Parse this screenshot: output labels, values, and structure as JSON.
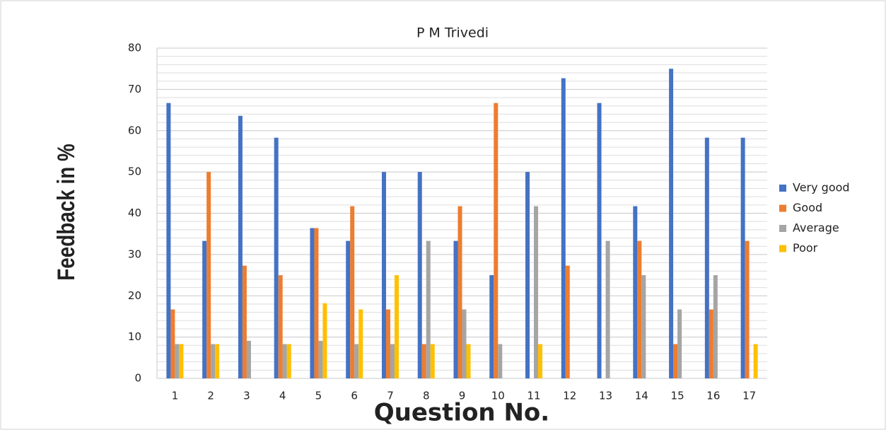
{
  "chart_data": {
    "type": "bar",
    "title": "P M Trivedi",
    "x_label": "Question No.",
    "y_label": "Feedback in %",
    "categories": [
      "1",
      "2",
      "3",
      "4",
      "5",
      "6",
      "7",
      "8",
      "9",
      "10",
      "11",
      "12",
      "13",
      "14",
      "15",
      "16",
      "17"
    ],
    "series": [
      {
        "name": "Very good",
        "color": "#4472c4",
        "values": [
          66.7,
          33.3,
          63.6,
          58.3,
          36.4,
          33.3,
          50,
          50,
          33.3,
          25,
          50,
          72.7,
          66.7,
          41.7,
          75,
          58.3,
          58.3
        ]
      },
      {
        "name": "Good",
        "color": "#ed7d31",
        "values": [
          16.7,
          50,
          27.3,
          25,
          36.4,
          41.7,
          16.7,
          8.3,
          41.7,
          66.7,
          0,
          27.3,
          0,
          33.3,
          8.3,
          16.7,
          33.3
        ]
      },
      {
        "name": "Average",
        "color": "#a5a5a5",
        "values": [
          8.3,
          8.3,
          9.1,
          8.3,
          9.1,
          8.3,
          8.3,
          33.3,
          16.7,
          8.3,
          41.7,
          0,
          33.3,
          25,
          16.7,
          25,
          0
        ]
      },
      {
        "name": "Poor",
        "color": "#ffc000",
        "values": [
          8.3,
          8.3,
          0,
          8.3,
          18.2,
          16.7,
          25,
          8.3,
          8.3,
          0,
          8.3,
          0,
          0,
          0,
          0,
          0,
          8.3
        ]
      }
    ],
    "ylim": [
      0,
      80
    ],
    "yticks": [
      0,
      10,
      20,
      30,
      40,
      50,
      60,
      70,
      80
    ],
    "grid": true,
    "legend": "right"
  }
}
